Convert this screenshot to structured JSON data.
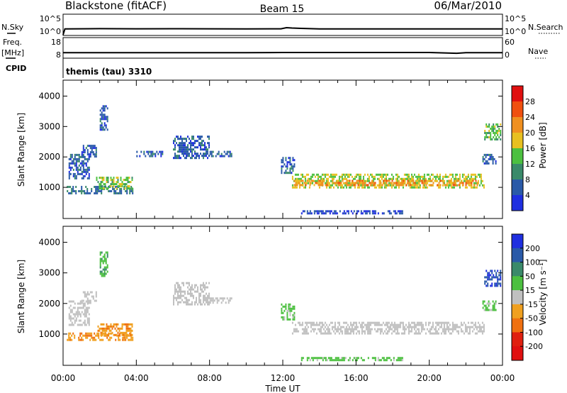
{
  "header": {
    "station": "Blackstone (fitACF)",
    "beam": "Beam 15",
    "date": "06/Mar/2010"
  },
  "top_panels": {
    "nsky_label": "N.Sky",
    "nsearch_label": "N.Search",
    "noise_ticks": [
      "10^5",
      "10^0"
    ],
    "freq_label": "Freq.",
    "freq_unit": "[MHz]",
    "freq_ticks": [
      "18",
      "8"
    ],
    "nave_label": "Nave",
    "nave_ticks": [
      "60",
      "0"
    ],
    "cpid_label": "CPID",
    "cpid_text": "themis (tau) 3310"
  },
  "xaxis": {
    "title": "Time UT",
    "ticks": [
      "00:00",
      "04:00",
      "08:00",
      "12:00",
      "16:00",
      "20:00",
      "00:00"
    ]
  },
  "power_panel": {
    "ylabel": "Slant Range [km]",
    "yticks": [
      "1000",
      "2000",
      "3000",
      "4000"
    ],
    "colorbar_label": "Power [dB]",
    "colorbar_ticks": [
      "4",
      "8",
      "12",
      "16",
      "20",
      "24",
      "28"
    ],
    "colors": [
      "#1f2fe0",
      "#2a5aa8",
      "#3a8a6a",
      "#4cc040",
      "#e8c020",
      "#f09020",
      "#f05010",
      "#e01010"
    ]
  },
  "velocity_panel": {
    "ylabel": "Slant Range [km]",
    "yticks": [
      "1000",
      "2000",
      "3000",
      "4000"
    ],
    "colorbar_label": "Velocity [m s⁻¹]",
    "colorbar_ticks": [
      "200",
      "100",
      "50",
      "15",
      "-15",
      "-50",
      "-100",
      "-200"
    ],
    "colors": [
      "#1f2fe0",
      "#2a5aa8",
      "#3a8a6a",
      "#4cc040",
      "#c0c0c0",
      "#f0a020",
      "#f07010",
      "#e02010",
      "#e01010"
    ]
  },
  "chart_data": [
    {
      "type": "line",
      "title": "",
      "x_unit": "hours UT",
      "xlim": [
        0,
        24
      ],
      "ylim": [
        1,
        100000
      ],
      "yscale": "log",
      "series": [
        {
          "x": [
            0,
            0.1,
            2,
            4,
            6,
            8,
            10,
            11.9,
            12.2,
            12.5,
            13,
            14,
            16,
            18,
            20,
            22,
            24
          ],
          "y": [
            1,
            30,
            35,
            32,
            33,
            31,
            30,
            32,
            60,
            50,
            40,
            30,
            30,
            30,
            30,
            30,
            30
          ]
        }
      ]
    },
    {
      "type": "line",
      "title": "",
      "x_unit": "hours UT",
      "xlim": [
        0,
        24
      ],
      "ylim": [
        8,
        18
      ],
      "series": [
        {
          "x": [
            0,
            2,
            4,
            6,
            8,
            10,
            12,
            14,
            16,
            18,
            20,
            21.5,
            22,
            24
          ],
          "y": [
            10.5,
            10.5,
            10.5,
            10.5,
            10.5,
            10.5,
            10.6,
            10.6,
            10.6,
            10.6,
            10.6,
            10.2,
            10.5,
            10.5
          ]
        }
      ]
    },
    {
      "type": "heatmap",
      "title": "",
      "xlabel": "Time UT",
      "ylabel": "Slant Range [km]",
      "xlim": [
        0,
        24
      ],
      "ylim": [
        0,
        4500
      ],
      "colorbar": "Power [dB]",
      "clim": [
        0,
        32
      ],
      "regions": [
        {
          "t": [
            0.3,
            1.4
          ],
          "r": [
            1300,
            2100
          ],
          "value": 6
        },
        {
          "t": [
            1.0,
            1.8
          ],
          "r": [
            2000,
            2400
          ],
          "value": 6
        },
        {
          "t": [
            0.2,
            3.8
          ],
          "r": [
            780,
            1050
          ],
          "value": 8
        },
        {
          "t": [
            1.8,
            3.8
          ],
          "r": [
            1000,
            1350
          ],
          "value": 14
        },
        {
          "t": [
            2.0,
            2.4
          ],
          "r": [
            2900,
            3700
          ],
          "value": 6
        },
        {
          "t": [
            4.0,
            5.5
          ],
          "r": [
            2000,
            2200
          ],
          "value": 6
        },
        {
          "t": [
            6.0,
            8.0
          ],
          "r": [
            2000,
            2700
          ],
          "value": 6
        },
        {
          "t": [
            8.0,
            9.2
          ],
          "r": [
            2000,
            2200
          ],
          "value": 6
        },
        {
          "t": [
            11.9,
            12.6
          ],
          "r": [
            1500,
            2000
          ],
          "value": 6
        },
        {
          "t": [
            12.5,
            23.0
          ],
          "r": [
            1000,
            1450
          ],
          "value": 16
        },
        {
          "t": [
            12.6,
            22.6
          ],
          "r": [
            1050,
            1250
          ],
          "value": 22
        },
        {
          "t": [
            13.0,
            18.5
          ],
          "r": [
            150,
            250
          ],
          "value": 4
        },
        {
          "t": [
            22.9,
            23.6
          ],
          "r": [
            1800,
            2100
          ],
          "value": 6
        },
        {
          "t": [
            23.0,
            23.9
          ],
          "r": [
            2600,
            3100
          ],
          "value": 14
        }
      ]
    },
    {
      "type": "heatmap",
      "title": "",
      "xlabel": "Time UT",
      "ylabel": "Slant Range [km]",
      "xlim": [
        0,
        24
      ],
      "ylim": [
        0,
        4500
      ],
      "colorbar": "Velocity [m s⁻¹]",
      "clim": [
        -200,
        200
      ],
      "regions": [
        {
          "t": [
            0.3,
            1.4
          ],
          "r": [
            1300,
            2100
          ],
          "value": 0
        },
        {
          "t": [
            1.0,
            1.8
          ],
          "r": [
            2000,
            2400
          ],
          "value": 0
        },
        {
          "t": [
            0.2,
            3.8
          ],
          "r": [
            780,
            1050
          ],
          "value": -60
        },
        {
          "t": [
            1.8,
            3.8
          ],
          "r": [
            1000,
            1350
          ],
          "value": -60
        },
        {
          "t": [
            2.0,
            2.4
          ],
          "r": [
            2900,
            3700
          ],
          "value": 60
        },
        {
          "t": [
            6.0,
            8.0
          ],
          "r": [
            2000,
            2700
          ],
          "value": 0
        },
        {
          "t": [
            8.0,
            9.2
          ],
          "r": [
            2000,
            2200
          ],
          "value": 0
        },
        {
          "t": [
            11.9,
            12.6
          ],
          "r": [
            1500,
            2000
          ],
          "value": 30
        },
        {
          "t": [
            12.5,
            23.0
          ],
          "r": [
            1050,
            1400
          ],
          "value": 0
        },
        {
          "t": [
            13.0,
            18.5
          ],
          "r": [
            150,
            250
          ],
          "value": 30
        },
        {
          "t": [
            22.9,
            23.6
          ],
          "r": [
            1800,
            2100
          ],
          "value": 30
        },
        {
          "t": [
            23.0,
            23.9
          ],
          "r": [
            2600,
            3100
          ],
          "value": 150
        }
      ]
    }
  ]
}
